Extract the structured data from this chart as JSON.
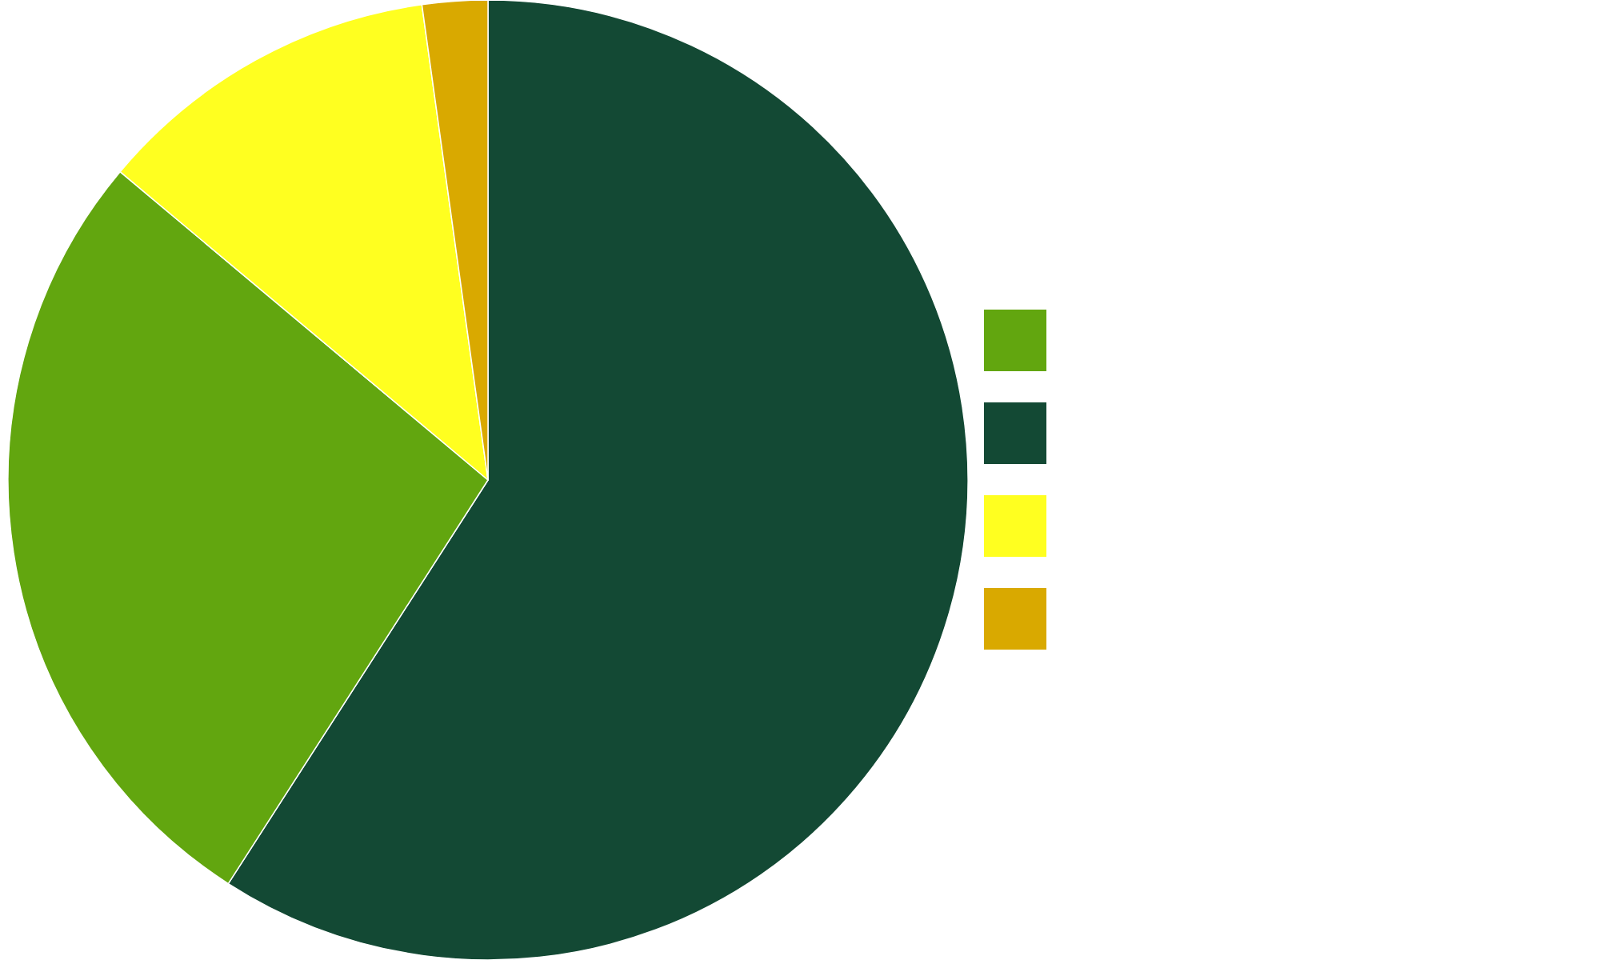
{
  "chart_data": {
    "type": "pie",
    "categories": [
      null,
      null,
      null,
      null
    ],
    "values": [
      59.1,
      27,
      11.7,
      2.2
    ],
    "colors": [
      "#134934",
      "#62a60f",
      "#ffff20",
      "#d9a900"
    ]
  }
}
